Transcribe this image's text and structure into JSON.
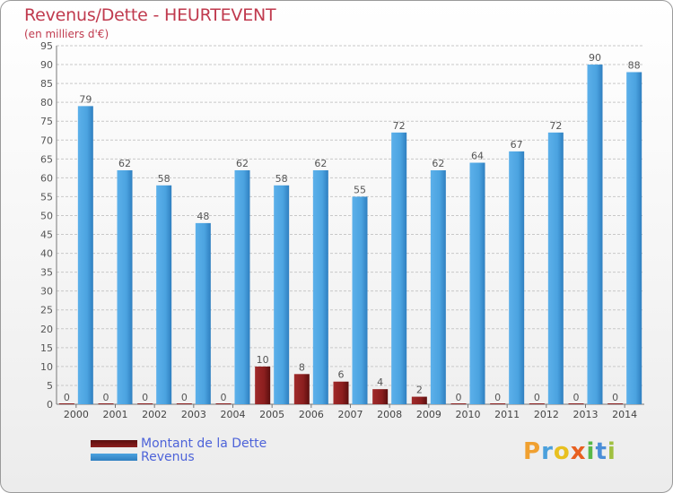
{
  "title": "Revenus/Dette - HEURTEVENT",
  "subtitle": "(en milliers d'€)",
  "logo_text": "Proxiti",
  "colors": {
    "debt": "#8b1e1e",
    "revenue": "#4ba3e0",
    "title": "#c03a4e",
    "legend_text": "#4d63d9",
    "grid": "#c8c8c8"
  },
  "chart_data": {
    "type": "bar",
    "categories": [
      "2000",
      "2001",
      "2002",
      "2003",
      "2004",
      "2005",
      "2006",
      "2007",
      "2008",
      "2009",
      "2010",
      "2011",
      "2012",
      "2013",
      "2014"
    ],
    "series": [
      {
        "name": "Montant de la Dette",
        "values": [
          0,
          0,
          0,
          0,
          0,
          10,
          8,
          6,
          4,
          2,
          0,
          0,
          0,
          0,
          0
        ]
      },
      {
        "name": "Revenus",
        "values": [
          79,
          62,
          58,
          48,
          62,
          58,
          62,
          55,
          72,
          62,
          64,
          67,
          72,
          90,
          88
        ]
      }
    ],
    "ylim": [
      0,
      95
    ],
    "yticks": [
      0,
      5,
      10,
      15,
      20,
      25,
      30,
      35,
      40,
      45,
      50,
      55,
      60,
      65,
      70,
      75,
      80,
      85,
      90,
      95
    ],
    "grid": true,
    "legend_position": "bottom-left"
  }
}
